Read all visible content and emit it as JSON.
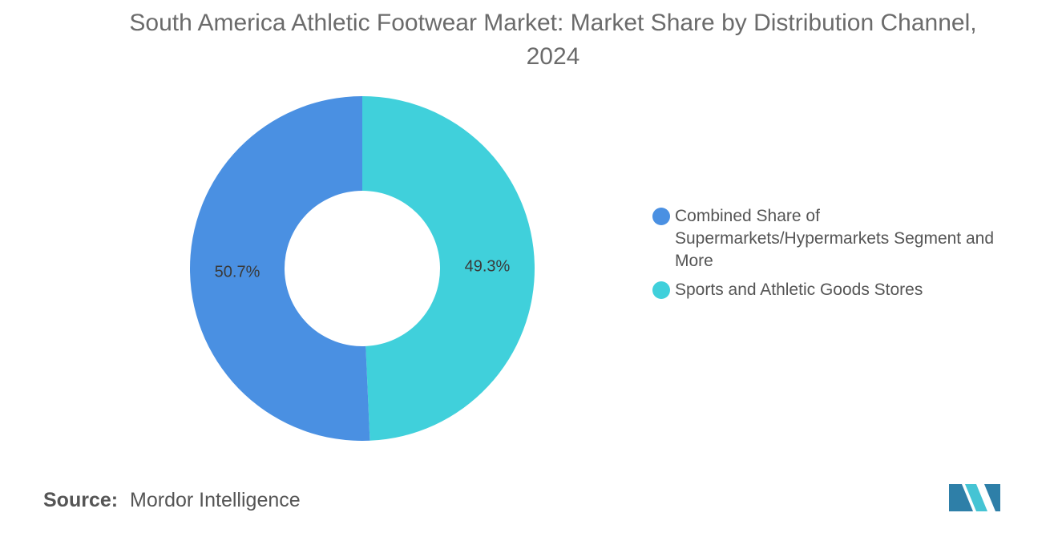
{
  "title": "South America Athletic Footwear Market: Market Share by Distribution Channel, 2024",
  "source": {
    "label": "Source:",
    "text": "Mordor Intelligence"
  },
  "chart_data": {
    "type": "pie",
    "donut": true,
    "title": "South America Athletic Footwear Market: Market Share by Distribution Channel, 2024",
    "legend_position": "right",
    "series": [
      {
        "name": "Sports and Athletic Goods Stores",
        "value": 49.3,
        "label": "49.3%",
        "color": "#40D0DB"
      },
      {
        "name": "Combined Share of Supermarkets/Hypermarkets Segment and More",
        "value": 50.7,
        "label": "50.7%",
        "color": "#4A90E2"
      }
    ]
  },
  "legend": [
    {
      "label": "Combined Share of Supermarkets/Hypermarkets Segment and More",
      "color": "#4A90E2"
    },
    {
      "label": "Sports and Athletic Goods Stores",
      "color": "#40D0DB"
    }
  ],
  "logo": {
    "name": "mordor-intelligence-logo",
    "colors": [
      "#2E7FA8",
      "#45C4D4"
    ]
  }
}
